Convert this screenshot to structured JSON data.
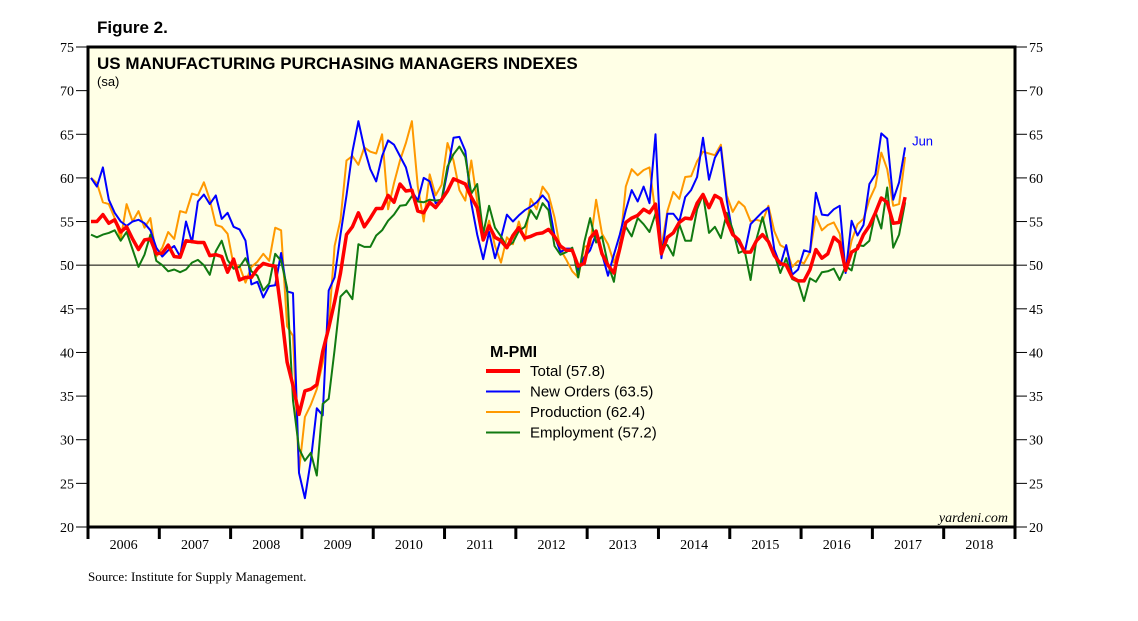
{
  "figure_label": "Figure 2.",
  "source": "Source: Institute for Supply Management.",
  "chart_data": {
    "type": "line",
    "title": "US MANUFACTURING PURCHASING MANAGERS INDEXES",
    "subtitle": "(sa)",
    "xlabel": "",
    "ylabel": "",
    "ylim": [
      20,
      75
    ],
    "yticks": [
      20,
      25,
      30,
      35,
      40,
      45,
      50,
      55,
      60,
      65,
      70,
      75
    ],
    "xlim": [
      "2006-01",
      "2018-12"
    ],
    "xtick_labels": [
      "2006",
      "2007",
      "2008",
      "2009",
      "2010",
      "2011",
      "2012",
      "2013",
      "2014",
      "2015",
      "2016",
      "2017",
      "2018"
    ],
    "reference_line": 50,
    "annotation": "Jun",
    "watermark": "yardeni.com",
    "grid": false,
    "legend": {
      "title": "M-PMI",
      "position": "center"
    },
    "x_start": "2006-01",
    "x_frequency": "monthly",
    "series": [
      {
        "name": "Total",
        "latest": "57.8",
        "color": "#ff0000",
        "values": [
          55.0,
          55.0,
          55.8,
          54.8,
          55.2,
          53.8,
          54.4,
          53.0,
          51.8,
          52.9,
          53.0,
          51.3,
          51.4,
          52.3,
          51.0,
          50.9,
          52.8,
          52.7,
          52.6,
          52.6,
          51.1,
          51.2,
          51.0,
          49.2,
          50.7,
          48.3,
          48.6,
          48.6,
          49.6,
          50.2,
          50.0,
          49.9,
          44.8,
          38.9,
          36.2,
          32.9,
          35.6,
          35.8,
          36.3,
          40.1,
          42.8,
          45.8,
          49.1,
          53.5,
          54.4,
          56.0,
          54.4,
          55.4,
          56.5,
          56.5,
          58.0,
          57.2,
          59.3,
          58.5,
          58.6,
          56.2,
          56.0,
          57.2,
          56.6,
          57.5,
          58.5,
          59.9,
          59.6,
          59.3,
          57.8,
          56.6,
          52.9,
          54.5,
          53.2,
          52.8,
          52.0,
          53.4,
          54.3,
          53.1,
          53.3,
          53.6,
          53.7,
          54.1,
          53.3,
          52.2,
          51.7,
          51.7,
          49.9,
          50.2,
          53.1,
          53.9,
          51.3,
          50.0,
          49.1,
          51.9,
          54.9,
          55.4,
          55.7,
          56.4,
          56.0,
          57.0,
          51.3,
          53.2,
          53.7,
          54.9,
          55.4,
          55.3,
          57.1,
          58.1,
          56.6,
          58.0,
          57.6,
          55.1,
          53.5,
          52.9,
          51.5,
          51.5,
          52.8,
          53.5,
          52.7,
          51.1,
          50.2,
          50.0,
          48.6,
          48.2,
          48.2,
          49.5,
          51.8,
          50.8,
          51.3,
          53.2,
          52.6,
          49.4,
          51.5,
          51.9,
          53.5,
          54.5,
          56.0,
          57.7,
          57.2,
          54.8,
          54.9,
          57.8
        ]
      },
      {
        "name": "New Orders",
        "latest": "63.5",
        "color": "#0000ff",
        "values": [
          60.0,
          59.0,
          61.2,
          57.5,
          56.0,
          55.0,
          54.5,
          55.0,
          55.2,
          54.8,
          54.0,
          52.0,
          51.0,
          51.7,
          52.2,
          51.0,
          55.0,
          52.6,
          57.3,
          58.1,
          57.0,
          58.0,
          55.3,
          56.0,
          54.4,
          54.1,
          52.8,
          47.8,
          48.1,
          46.3,
          47.6,
          47.7,
          51.4,
          47.0,
          46.8,
          26.2,
          23.3,
          27.6,
          33.6,
          32.8,
          47.1,
          48.6,
          53.5,
          58.0,
          63.0,
          66.5,
          63.4,
          61.0,
          59.6,
          62.5,
          64.3,
          63.8,
          62.5,
          61.2,
          58.5,
          57.4,
          60.0,
          59.6,
          57.1,
          57.3,
          60.8,
          64.6,
          64.7,
          63.1,
          57.1,
          53.5,
          50.7,
          53.8,
          50.8,
          53.1,
          55.8,
          55.0,
          55.7,
          56.3,
          56.7,
          57.2,
          58.0,
          57.2,
          53.4,
          51.5,
          51.9,
          51.9,
          49.4,
          50.9,
          51.7,
          53.6,
          51.3,
          48.8,
          51.2,
          53.5,
          56.3,
          58.6,
          57.3,
          59.0,
          57.1,
          65.0,
          50.8,
          55.9,
          55.9,
          55.0,
          57.8,
          58.6,
          60.1,
          64.6,
          59.8,
          62.3,
          63.5,
          57.4,
          53.6,
          52.6,
          51.4,
          54.7,
          55.4,
          56.1,
          56.6,
          51.8,
          50.0,
          52.3,
          48.9,
          49.5,
          51.7,
          51.5,
          58.3,
          55.8,
          55.7,
          56.4,
          56.8,
          49.1,
          55.1,
          53.4,
          54.6,
          59.3,
          60.4,
          65.1,
          64.5,
          57.5,
          59.5,
          63.5
        ]
      },
      {
        "name": "Production",
        "latest": "62.4",
        "color": "#ff9900",
        "values": [
          60.0,
          59.4,
          57.2,
          57.0,
          55.4,
          53.0,
          57.0,
          55.0,
          56.2,
          54.3,
          55.4,
          51.0,
          52.0,
          53.8,
          53.0,
          56.2,
          56.0,
          58.2,
          58.0,
          59.5,
          57.5,
          54.6,
          54.4,
          53.6,
          50.0,
          49.9,
          48.0,
          49.8,
          50.4,
          51.3,
          50.5,
          54.3,
          54.0,
          43.0,
          41.9,
          26.4,
          32.6,
          34.0,
          35.8,
          38.8,
          43.0,
          52.2,
          55.2,
          62.0,
          62.5,
          61.5,
          63.5,
          63.0,
          62.8,
          65.0,
          56.4,
          59.4,
          62.0,
          64.0,
          66.5,
          59.0,
          55.0,
          60.4,
          58.0,
          59.2,
          64.0,
          62.0,
          58.6,
          57.4,
          62.0,
          57.3,
          52.8,
          55.1,
          52.2,
          50.3,
          53.2,
          52.4,
          55.0,
          52.8,
          57.6,
          56.4,
          59.0,
          58.1,
          55.5,
          51.8,
          50.6,
          49.3,
          48.6,
          52.1,
          52.3,
          57.5,
          53.6,
          52.4,
          50.3,
          52.1,
          59.0,
          61.0,
          60.3,
          60.9,
          61.2,
          55.9,
          52.0,
          56.2,
          58.4,
          57.6,
          60.1,
          60.2,
          61.9,
          63.0,
          62.8,
          62.6,
          63.8,
          58.0,
          56.1,
          57.3,
          56.7,
          55.0,
          55.2,
          55.0,
          56.8,
          53.9,
          52.3,
          51.9,
          49.8,
          50.5,
          50.2,
          51.5,
          55.6,
          54.0,
          54.6,
          54.9,
          53.6,
          49.6,
          52.8,
          54.7,
          55.3,
          57.5,
          59.0,
          62.9,
          61.0,
          56.8,
          57.0,
          62.4
        ]
      },
      {
        "name": "Employment",
        "latest": "57.2",
        "color": "#117a11",
        "values": [
          53.5,
          53.2,
          53.5,
          53.7,
          54.0,
          52.8,
          53.8,
          51.8,
          49.8,
          51.2,
          53.5,
          50.5,
          50.0,
          49.3,
          49.5,
          49.2,
          49.5,
          50.3,
          50.6,
          50.0,
          48.9,
          51.6,
          52.8,
          50.6,
          49.6,
          49.8,
          50.8,
          49.3,
          48.8,
          47.1,
          47.9,
          51.3,
          50.5,
          47.4,
          34.5,
          29.0,
          27.6,
          28.5,
          25.9,
          34.1,
          34.7,
          40.3,
          46.4,
          47.1,
          46.1,
          52.4,
          52.1,
          52.1,
          53.4,
          54.0,
          55.1,
          55.8,
          56.8,
          56.9,
          57.9,
          57.3,
          57.2,
          57.5,
          57.4,
          57.5,
          61.3,
          62.7,
          63.6,
          62.4,
          58.2,
          59.3,
          53.6,
          56.8,
          54.3,
          53.3,
          52.1,
          52.6,
          53.9,
          54.4,
          56.3,
          55.3,
          57.1,
          56.3,
          52.2,
          51.2,
          51.5,
          52.0,
          48.6,
          52.6,
          55.4,
          52.6,
          53.3,
          50.1,
          48.1,
          52.5,
          54.4,
          53.3,
          55.4,
          54.7,
          53.8,
          55.9,
          52.3,
          52.3,
          51.1,
          54.7,
          52.8,
          52.8,
          56.4,
          58.1,
          53.7,
          54.4,
          53.1,
          56.0,
          54.1,
          51.4,
          51.7,
          48.3,
          53.0,
          55.5,
          52.7,
          51.3,
          49.1,
          50.8,
          48.4,
          48.1,
          45.9,
          48.5,
          48.1,
          49.2,
          49.3,
          49.6,
          48.3,
          49.9,
          49.4,
          52.3,
          52.2,
          52.8,
          56.1,
          54.2,
          58.9,
          52.0,
          53.5,
          57.2
        ]
      }
    ]
  }
}
